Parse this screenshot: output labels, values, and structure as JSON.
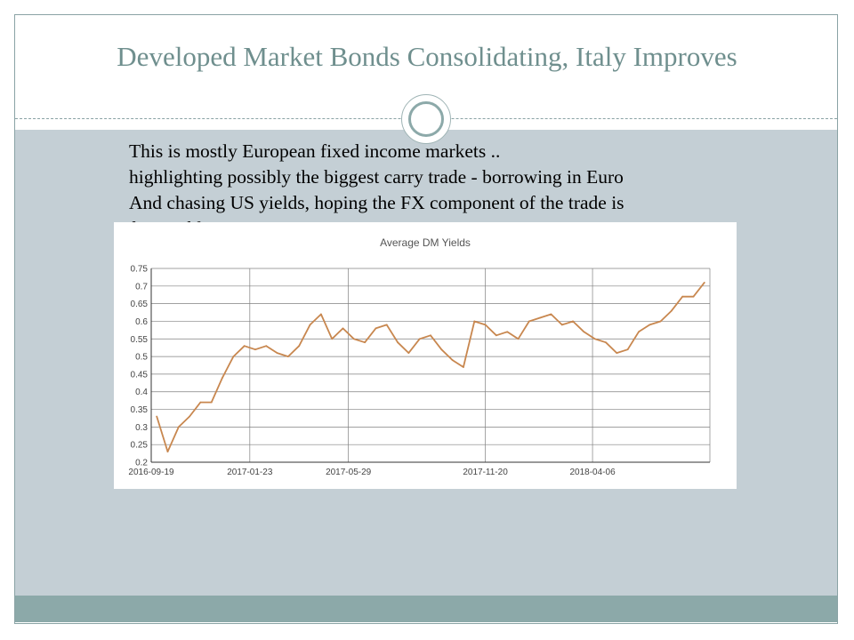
{
  "slide": {
    "title": "Developed Market Bonds Consolidating, Italy Improves",
    "body_lines": [
      "This is mostly European fixed income markets ..",
      "highlighting possibly the biggest carry trade  - borrowing in Euro",
      "And chasing US yields, hoping the FX component of the trade is",
      "favourable"
    ]
  },
  "colors": {
    "title": "#6f8f8e",
    "content_background": "#c4cfd5",
    "footer_band": "#8ca9a9",
    "line": "#c8874f",
    "grid": "#808080"
  },
  "chart_data": {
    "type": "line",
    "title": "Average DM Yields",
    "xlabel": "",
    "ylabel": "",
    "ylim": [
      0.2,
      0.75
    ],
    "yticks": [
      0.2,
      0.25,
      0.3,
      0.35,
      0.4,
      0.45,
      0.5,
      0.55,
      0.6,
      0.65,
      0.7,
      0.75
    ],
    "ytick_labels": [
      "0.2",
      "0.25",
      "0.3",
      "0.35",
      "0.4",
      "0.45",
      "0.5",
      "0.55",
      "0.6",
      "0.65",
      "0.7",
      "0.75"
    ],
    "xtick_labels": [
      "2016-09-19",
      "2017-01-23",
      "2017-05-29",
      "2017-11-20",
      "2018-04-06"
    ],
    "xtick_dates": [
      "2016-09-19",
      "2017-01-23",
      "2017-05-29",
      "2017-11-20",
      "2018-04-06"
    ],
    "x_range": [
      "2016-09-19",
      "2018-09-03"
    ],
    "grid": true,
    "series": [
      {
        "name": "",
        "x": [
          "2016-09-26",
          "2016-10-10",
          "2016-10-24",
          "2016-11-07",
          "2016-11-21",
          "2016-12-05",
          "2016-12-19",
          "2017-01-02",
          "2017-01-16",
          "2017-01-30",
          "2017-02-13",
          "2017-02-27",
          "2017-03-13",
          "2017-03-27",
          "2017-04-10",
          "2017-04-24",
          "2017-05-08",
          "2017-05-22",
          "2017-06-05",
          "2017-06-19",
          "2017-07-03",
          "2017-07-17",
          "2017-07-31",
          "2017-08-14",
          "2017-08-28",
          "2017-09-11",
          "2017-09-25",
          "2017-10-09",
          "2017-10-23",
          "2017-11-06",
          "2017-11-20",
          "2017-12-04",
          "2017-12-18",
          "2018-01-01",
          "2018-01-15",
          "2018-01-29",
          "2018-02-12",
          "2018-02-26",
          "2018-03-12",
          "2018-03-26",
          "2018-04-09",
          "2018-04-23",
          "2018-05-07",
          "2018-05-21",
          "2018-06-04",
          "2018-06-18",
          "2018-07-02",
          "2018-07-16",
          "2018-07-30",
          "2018-08-13",
          "2018-08-27"
        ],
        "values": [
          0.33,
          0.23,
          0.3,
          0.33,
          0.37,
          0.37,
          0.44,
          0.5,
          0.53,
          0.52,
          0.53,
          0.51,
          0.5,
          0.53,
          0.59,
          0.62,
          0.55,
          0.58,
          0.55,
          0.54,
          0.58,
          0.59,
          0.54,
          0.51,
          0.55,
          0.56,
          0.52,
          0.49,
          0.47,
          0.6,
          0.59,
          0.56,
          0.57,
          0.55,
          0.6,
          0.61,
          0.62,
          0.59,
          0.6,
          0.57,
          0.55,
          0.54,
          0.51,
          0.52,
          0.57,
          0.59,
          0.6,
          0.63,
          0.67,
          0.67,
          0.71
        ]
      }
    ]
  }
}
